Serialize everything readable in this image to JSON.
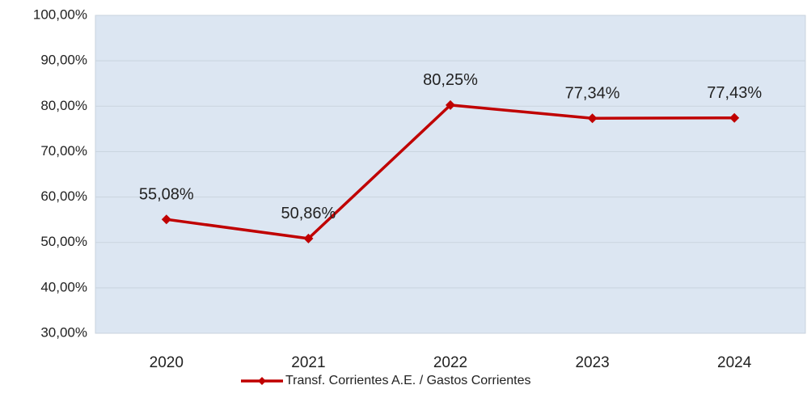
{
  "chart_data": {
    "type": "line",
    "categories": [
      "2020",
      "2021",
      "2022",
      "2023",
      "2024"
    ],
    "series": [
      {
        "name": "Transf. Corrientes A.E. / Gastos Corrientes",
        "color": "#c00000",
        "values": [
          55.08,
          50.86,
          80.25,
          77.34,
          77.43
        ],
        "value_labels": [
          "55,08%",
          "50,86%",
          "80,25%",
          "77,34%",
          "77,43%"
        ]
      }
    ],
    "ylim": [
      30,
      100
    ],
    "yticks": [
      {
        "value": 30,
        "label": "30,00%"
      },
      {
        "value": 40,
        "label": "40,00%"
      },
      {
        "value": 50,
        "label": "50,00%"
      },
      {
        "value": 60,
        "label": "60,00%"
      },
      {
        "value": 70,
        "label": "70,00%"
      },
      {
        "value": 80,
        "label": "80,00%"
      },
      {
        "value": 90,
        "label": "90,00%"
      },
      {
        "value": 100,
        "label": "100,00%"
      }
    ],
    "grid": true,
    "legend": "bottom"
  }
}
